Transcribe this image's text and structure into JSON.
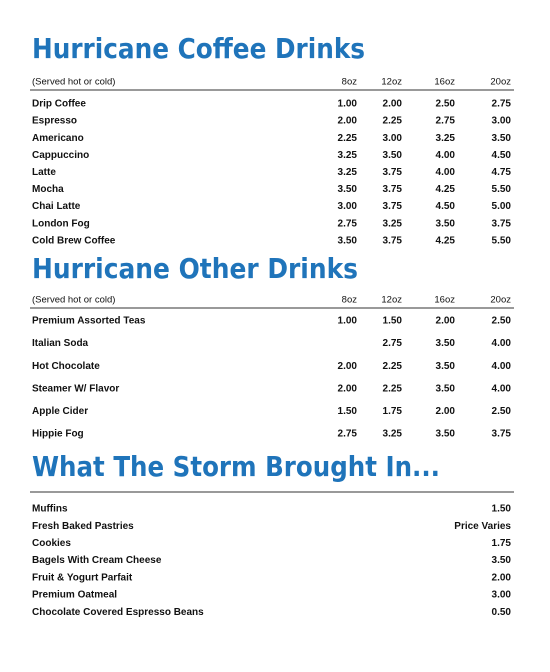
{
  "sections": [
    {
      "title": "Hurricane Coffee Drinks",
      "header": {
        "note": "(Served hot or cold)",
        "sizes": [
          "8oz",
          "12oz",
          "16oz",
          "20oz"
        ]
      },
      "rows": [
        {
          "name": "Drip Coffee",
          "prices": [
            "1.00",
            "2.00",
            "2.50",
            "2.75"
          ]
        },
        {
          "name": "Espresso",
          "prices": [
            "2.00",
            "2.25",
            "2.75",
            "3.00"
          ]
        },
        {
          "name": "Americano",
          "prices": [
            "2.25",
            "3.00",
            "3.25",
            "3.50"
          ]
        },
        {
          "name": "Cappuccino",
          "prices": [
            "3.25",
            "3.50",
            "4.00",
            "4.50"
          ]
        },
        {
          "name": "Latte",
          "prices": [
            "3.25",
            "3.75",
            "4.00",
            "4.75"
          ]
        },
        {
          "name": "Mocha",
          "prices": [
            "3.50",
            "3.75",
            "4.25",
            "5.50"
          ]
        },
        {
          "name": "Chai Latte",
          "prices": [
            "3.00",
            "3.75",
            "4.50",
            "5.00"
          ]
        },
        {
          "name": "London Fog",
          "prices": [
            "2.75",
            "3.25",
            "3.50",
            "3.75"
          ]
        },
        {
          "name": "Cold Brew Coffee",
          "prices": [
            "3.50",
            "3.75",
            "4.25",
            "5.50"
          ]
        }
      ]
    },
    {
      "title": "Hurricane Other Drinks",
      "header": {
        "note": "(Served hot or cold)",
        "sizes": [
          "8oz",
          "12oz",
          "16oz",
          "20oz"
        ]
      },
      "rows": [
        {
          "name": "Premium Assorted Teas",
          "prices": [
            "1.00",
            "1.50",
            "2.00",
            "2.50"
          ]
        },
        {
          "name": "Italian Soda",
          "prices": [
            null,
            "2.75",
            "3.50",
            "4.00"
          ]
        },
        {
          "name": "Hot Chocolate",
          "prices": [
            "2.00",
            "2.25",
            "3.50",
            "4.00"
          ]
        },
        {
          "name": "Steamer W/ Flavor",
          "prices": [
            "2.00",
            "2.25",
            "3.50",
            "4.00"
          ]
        },
        {
          "name": "Apple Cider",
          "prices": [
            "1.50",
            "1.75",
            "2.00",
            "2.50"
          ]
        },
        {
          "name": "Hippie Fog",
          "prices": [
            "2.75",
            "3.25",
            "3.50",
            "3.75"
          ]
        }
      ]
    },
    {
      "title": "What The Storm Brought In...",
      "items": [
        {
          "name": "Muffins",
          "price": "1.50"
        },
        {
          "name": "Fresh Baked Pastries",
          "price": "Price Varies"
        },
        {
          "name": "Cookies",
          "price": "1.75"
        },
        {
          "name": "Bagels With Cream Cheese",
          "price": "3.50"
        },
        {
          "name": "Fruit & Yogurt Parfait",
          "price": "2.00"
        },
        {
          "name": "Premium Oatmeal",
          "price": "3.00"
        },
        {
          "name": "Chocolate Covered Espresso Beans",
          "price": "0.50"
        }
      ]
    }
  ]
}
